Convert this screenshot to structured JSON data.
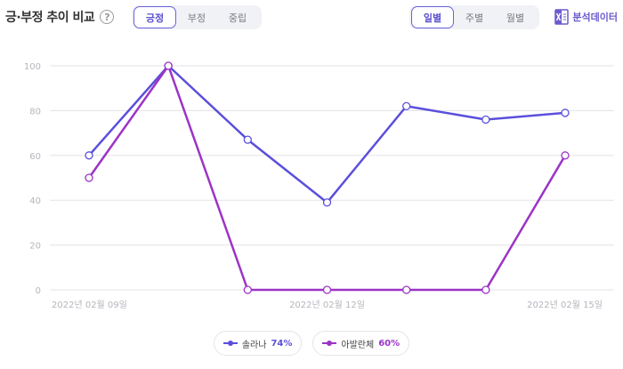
{
  "header": {
    "title": "긍·부정 추이 비교",
    "help_symbol": "?",
    "sentiment_tabs": [
      "긍정",
      "부정",
      "중립"
    ],
    "sentiment_active": 0,
    "period_tabs": [
      "일별",
      "주별",
      "월별"
    ],
    "period_active": 0,
    "export_label": "분석데이터",
    "export_icon": "excel-file-icon"
  },
  "colors": {
    "accent": "#5a4fd0",
    "series1": "#5b4fdc",
    "series2": "#9b34c6",
    "grid": "#e3e3e8",
    "tick": "#b5b5bd"
  },
  "chart_data": {
    "type": "line",
    "x": [
      "2022년 02월 09일",
      "2022년 02월 10일",
      "2022년 02월 11일",
      "2022년 02월 12일",
      "2022년 02월 13일",
      "2022년 02월 14일",
      "2022년 02월 15일"
    ],
    "x_tick_labels": [
      "2022년 02월 09일",
      "2022년 02월 12일",
      "2022년 02월 15일"
    ],
    "ylim": [
      0,
      100
    ],
    "yticks": [
      0,
      20,
      40,
      60,
      80,
      100
    ],
    "grid": true,
    "series": [
      {
        "name": "솔라나",
        "values": [
          60,
          100,
          67,
          39,
          82,
          76,
          79
        ],
        "percent": "74%"
      },
      {
        "name": "아발란체",
        "values": [
          50,
          100,
          0,
          0,
          0,
          0,
          60
        ],
        "percent": "60%"
      }
    ]
  }
}
